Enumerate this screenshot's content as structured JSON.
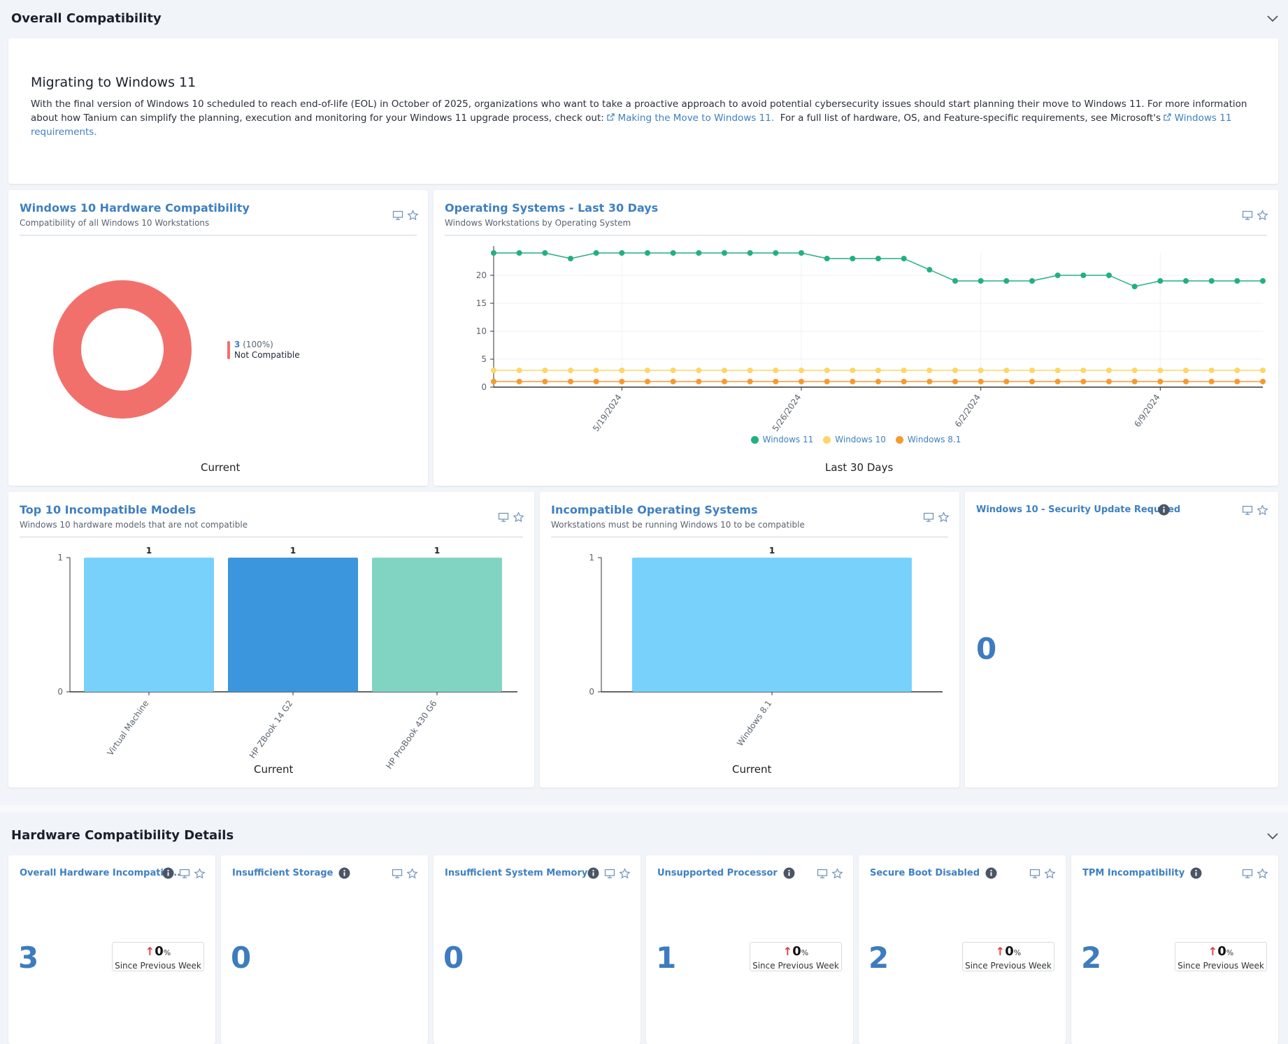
{
  "section1": {
    "title": "Overall Compatibility"
  },
  "banner": {
    "title": "Migrating to Windows 11",
    "body_part1": "With the final version of Windows 10 scheduled to reach end-of-life (EOL) in October of 2025, organizations who want to take a proactive approach to avoid potential cybersecurity issues should start planning their move to Windows 11. For more information about how Tanium can simplify the planning, execution and monitoring for your Windows 11 upgrade process, check out:",
    "link1": "Making the Move to Windows 11.",
    "body_part2": "For a full list of hardware, OS, and Feature-specific requirements, see Microsoft's",
    "link2": "Windows 11 requirements."
  },
  "hw_compat": {
    "title": "Windows 10 Hardware Compatibility",
    "subtitle": "Compatibility of all Windows 10 Workstations",
    "caption": "Current",
    "chart_data": {
      "type": "pie",
      "slices": [
        {
          "label": "Not Compatible",
          "value": 3,
          "percent": "(100%)",
          "color": "#f2706c"
        }
      ]
    }
  },
  "os30": {
    "title": "Operating Systems - Last 30 Days",
    "subtitle": "Windows Workstations by Operating System",
    "caption": "Last 30 Days",
    "chart_data": {
      "type": "line",
      "x_tick_labels": [
        "5/19/2024",
        "5/26/2024",
        "6/2/2024",
        "6/9/2024"
      ],
      "ylim": [
        0,
        24
      ],
      "y_ticks": [
        0,
        5,
        10,
        15,
        20
      ],
      "series": [
        {
          "name": "Windows 11",
          "color": "#22b07d",
          "values": [
            24,
            24,
            24,
            23,
            24,
            24,
            24,
            24,
            24,
            24,
            24,
            24,
            24,
            23,
            23,
            23,
            23,
            21,
            19,
            19,
            19,
            19,
            20,
            20,
            20,
            18,
            19,
            19,
            19,
            19,
            19
          ]
        },
        {
          "name": "Windows 10",
          "color": "#fcd768",
          "values": [
            3,
            3,
            3,
            3,
            3,
            3,
            3,
            3,
            3,
            3,
            3,
            3,
            3,
            3,
            3,
            3,
            3,
            3,
            3,
            3,
            3,
            3,
            3,
            3,
            3,
            3,
            3,
            3,
            3,
            3,
            3
          ]
        },
        {
          "name": "Windows 8.1",
          "color": "#f59a2f",
          "values": [
            1,
            1,
            1,
            1,
            1,
            1,
            1,
            1,
            1,
            1,
            1,
            1,
            1,
            1,
            1,
            1,
            1,
            1,
            1,
            1,
            1,
            1,
            1,
            1,
            1,
            1,
            1,
            1,
            1,
            1,
            1
          ]
        }
      ]
    }
  },
  "top_models": {
    "title": "Top 10 Incompatible Models",
    "subtitle": "Windows 10 hardware models that are not compatible",
    "caption": "Current",
    "chart_data": {
      "type": "bar",
      "categories": [
        "Virtual Machine",
        "HP ZBook 14 G2",
        "HP ProBook 430 G6"
      ],
      "values": [
        1,
        1,
        1
      ],
      "colors": [
        "#77d1fb",
        "#3b96dd",
        "#82d4c2"
      ],
      "ylim": [
        0,
        1
      ],
      "y_ticks": [
        0,
        1
      ]
    }
  },
  "incompat_os": {
    "title": "Incompatible Operating Systems",
    "subtitle": "Workstations must be running Windows 10 to be compatible",
    "caption": "Current",
    "chart_data": {
      "type": "bar",
      "categories": [
        "Windows 8.1"
      ],
      "values": [
        1
      ],
      "colors": [
        "#77d1fb"
      ],
      "ylim": [
        0,
        1
      ],
      "y_ticks": [
        0,
        1
      ]
    }
  },
  "sec_update": {
    "title": "Windows 10 - Security Update Required",
    "value": "0"
  },
  "section2": {
    "title": "Hardware Compatibility Details"
  },
  "details": [
    {
      "title": "Overall Hardware Incompatib...",
      "value": "3",
      "delta": "0",
      "pct": "%",
      "since": "Since Previous Week"
    },
    {
      "title": "Insufficient Storage",
      "value": "0"
    },
    {
      "title": "Insufficient System Memory",
      "value": "0"
    },
    {
      "title": "Unsupported Processor",
      "value": "1",
      "delta": "0",
      "pct": "%",
      "since": "Since Previous Week"
    },
    {
      "title": "Secure Boot Disabled",
      "value": "2",
      "delta": "0",
      "pct": "%",
      "since": "Since Previous Week"
    },
    {
      "title": "TPM Incompatibility",
      "value": "2",
      "delta": "0",
      "pct": "%",
      "since": "Since Previous Week"
    }
  ]
}
